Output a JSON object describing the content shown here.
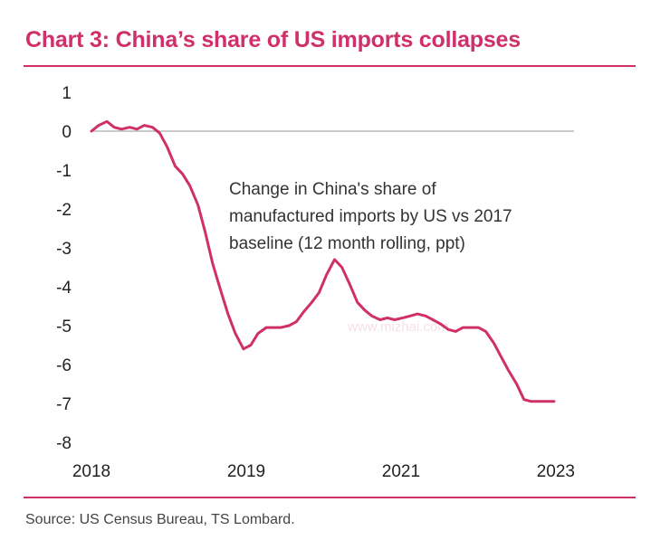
{
  "header": {
    "title": "Chart 3: China’s share of US imports collapses"
  },
  "footer": {
    "source": "Source: US Census Bureau, TS Lombard."
  },
  "watermark": {
    "text": "www.mizhai.com"
  },
  "colors": {
    "accent": "#d0306a",
    "line": "#d0306a",
    "zero_line": "#aaaaaa"
  },
  "chart_data": {
    "type": "line",
    "title": "Chart 3: China’s share of US imports collapses",
    "xlabel": "",
    "ylabel": "",
    "ylim": [
      -8,
      1
    ],
    "xlim": [
      2018,
      2023.3
    ],
    "y_ticks": [
      1,
      0,
      -1,
      -2,
      -3,
      -4,
      -5,
      -6,
      -7,
      -8
    ],
    "x_ticks": [
      {
        "value": 2018,
        "label": "2018"
      },
      {
        "value": 2019.7,
        "label": "2019"
      },
      {
        "value": 2021.4,
        "label": "2021"
      },
      {
        "value": 2023.1,
        "label": "2023"
      }
    ],
    "zero_line": true,
    "grid": false,
    "annotation_lines": [
      "Change in China's share of",
      "manufactured imports by US vs 2017",
      "baseline (12 month rolling, ppt)"
    ],
    "series": [
      {
        "x": [
          2018.0,
          2018.08,
          2018.17,
          2018.25,
          2018.33,
          2018.42,
          2018.5,
          2018.58,
          2018.67,
          2018.75,
          2018.83,
          2018.92,
          2019.0,
          2019.08,
          2019.17,
          2019.25,
          2019.33,
          2019.42,
          2019.5,
          2019.58,
          2019.67,
          2019.75,
          2019.83,
          2019.92,
          2020.0,
          2020.08,
          2020.17,
          2020.25,
          2020.33,
          2020.42,
          2020.5,
          2020.58,
          2020.67,
          2020.75,
          2020.83,
          2020.92,
          2021.0,
          2021.08,
          2021.17,
          2021.25,
          2021.33,
          2021.42,
          2021.5,
          2021.58,
          2021.67,
          2021.75,
          2021.83,
          2021.92,
          2022.0,
          2022.08,
          2022.17,
          2022.25,
          2022.33,
          2022.42,
          2022.5,
          2022.58,
          2022.67,
          2022.75,
          2022.83,
          2022.92,
          2023.0,
          2023.08
        ],
        "y": [
          0.0,
          0.15,
          0.25,
          0.1,
          0.05,
          0.1,
          0.05,
          0.15,
          0.1,
          -0.05,
          -0.4,
          -0.9,
          -1.1,
          -1.4,
          -1.9,
          -2.6,
          -3.4,
          -4.1,
          -4.7,
          -5.2,
          -5.6,
          -5.5,
          -5.2,
          -5.05,
          -5.05,
          -5.05,
          -5.0,
          -4.9,
          -4.65,
          -4.4,
          -4.15,
          -3.7,
          -3.3,
          -3.5,
          -3.9,
          -4.4,
          -4.6,
          -4.75,
          -4.85,
          -4.8,
          -4.85,
          -4.8,
          -4.75,
          -4.7,
          -4.75,
          -4.85,
          -4.95,
          -5.1,
          -5.15,
          -5.05,
          -5.05,
          -5.05,
          -5.15,
          -5.45,
          -5.8,
          -6.15,
          -6.5,
          -6.9,
          -6.95,
          -6.95,
          -6.95,
          -6.95
        ]
      }
    ]
  }
}
